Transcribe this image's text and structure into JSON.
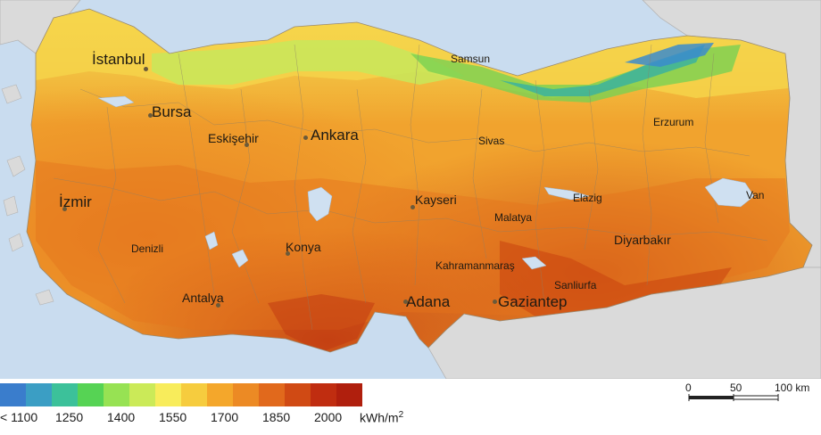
{
  "map": {
    "cities": [
      {
        "name": "İstanbul",
        "size": "large"
      },
      {
        "name": "Samsun",
        "size": "small"
      },
      {
        "name": "Bursa",
        "size": "large"
      },
      {
        "name": "Eskişehir",
        "size": "medium"
      },
      {
        "name": "Ankara",
        "size": "large"
      },
      {
        "name": "Sivas",
        "size": "small"
      },
      {
        "name": "Erzurum",
        "size": "small"
      },
      {
        "name": "İzmir",
        "size": "large"
      },
      {
        "name": "Kayseri",
        "size": "medium"
      },
      {
        "name": "Elazig",
        "size": "small"
      },
      {
        "name": "Van",
        "size": "small"
      },
      {
        "name": "Malatya",
        "size": "small"
      },
      {
        "name": "Denizli",
        "size": "small"
      },
      {
        "name": "Konya",
        "size": "medium"
      },
      {
        "name": "Diyarbakır",
        "size": "medium"
      },
      {
        "name": "Kahramanmaraş",
        "size": "small"
      },
      {
        "name": "Sanliurfa",
        "size": "small"
      },
      {
        "name": "Antalya",
        "size": "medium"
      },
      {
        "name": "Adana",
        "size": "large"
      },
      {
        "name": "Gaziantep",
        "size": "large"
      }
    ],
    "colors": {
      "sea": "#c9dcef",
      "neighbor_land": "#dadada",
      "lake": "#cfe0f1"
    }
  },
  "legend": {
    "colors": [
      "#3a7dcc",
      "#3b9ec4",
      "#3cc19a",
      "#56d354",
      "#97e253",
      "#cbea58",
      "#f8ec5b",
      "#f6cc3e",
      "#f4a72b",
      "#ec8a24",
      "#e1691c",
      "#d04a14",
      "#c02d10",
      "#b01f0d"
    ],
    "ticks": [
      "< 1100",
      "1250",
      "1400",
      "1550",
      "1700",
      "1850",
      "2000"
    ],
    "unit_base": "kWh/m",
    "unit_exp": "2"
  },
  "scale_bar": {
    "labels": [
      "0",
      "50",
      "100 km"
    ]
  }
}
